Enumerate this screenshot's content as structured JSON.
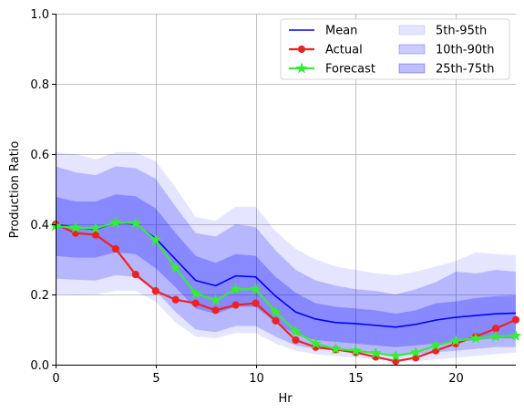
{
  "chart_data": {
    "type": "line",
    "xlabel": "Hr",
    "ylabel": "Production Ratio",
    "xlim": [
      0,
      23
    ],
    "ylim": [
      0,
      1.0
    ],
    "xticks": [
      0,
      5,
      10,
      15,
      20
    ],
    "yticks": [
      0.0,
      0.2,
      0.4,
      0.6,
      0.8,
      1.0
    ],
    "xtick_labels": [
      "0",
      "5",
      "10",
      "15",
      "20"
    ],
    "ytick_labels": [
      "0.0",
      "0.2",
      "0.4",
      "0.6",
      "0.8",
      "1.0"
    ],
    "grid": true,
    "legend_position": "top-right",
    "x": [
      0,
      1,
      2,
      3,
      4,
      5,
      6,
      7,
      8,
      9,
      10,
      11,
      12,
      13,
      14,
      15,
      16,
      17,
      18,
      19,
      20,
      21,
      22,
      23
    ],
    "series": [
      {
        "name": "Mean",
        "color": "#0000ff",
        "marker": "none",
        "values": [
          0.4,
          0.39,
          0.385,
          0.405,
          0.4,
          0.36,
          0.3,
          0.24,
          0.225,
          0.253,
          0.25,
          0.195,
          0.15,
          0.13,
          0.12,
          0.117,
          0.112,
          0.107,
          0.115,
          0.127,
          0.135,
          0.14,
          0.145,
          0.147
        ]
      },
      {
        "name": "Actual",
        "color": "#ee2222",
        "marker": "circle",
        "values": [
          0.4,
          0.375,
          0.37,
          0.33,
          0.257,
          0.21,
          0.185,
          0.175,
          0.155,
          0.17,
          0.175,
          0.125,
          0.07,
          0.05,
          0.043,
          0.035,
          0.022,
          0.01,
          0.02,
          0.04,
          0.06,
          0.08,
          0.103,
          0.128
        ]
      },
      {
        "name": "Forecast",
        "color": "#33ee33",
        "marker": "star",
        "values": [
          0.395,
          0.39,
          0.388,
          0.405,
          0.403,
          0.355,
          0.275,
          0.203,
          0.183,
          0.215,
          0.215,
          0.15,
          0.095,
          0.06,
          0.045,
          0.04,
          0.033,
          0.025,
          0.035,
          0.055,
          0.068,
          0.075,
          0.08,
          0.082
        ]
      }
    ],
    "bands": [
      {
        "name": "5th-95th",
        "color": "#0000ff",
        "opacity": 0.1,
        "lower": [
          0.2,
          0.198,
          0.2,
          0.21,
          0.21,
          0.18,
          0.12,
          0.08,
          0.075,
          0.09,
          0.09,
          0.06,
          0.04,
          0.03,
          0.025,
          0.02,
          0.015,
          0.01,
          0.01,
          0.015,
          0.02,
          0.025,
          0.03,
          0.035
        ],
        "upper": [
          0.605,
          0.6,
          0.585,
          0.605,
          0.605,
          0.58,
          0.505,
          0.42,
          0.41,
          0.45,
          0.45,
          0.38,
          0.33,
          0.3,
          0.28,
          0.27,
          0.26,
          0.255,
          0.265,
          0.28,
          0.295,
          0.32,
          0.315,
          0.312
        ]
      },
      {
        "name": "10th-90th",
        "color": "#0000ff",
        "opacity": 0.2,
        "lower": [
          0.245,
          0.242,
          0.24,
          0.255,
          0.25,
          0.21,
          0.15,
          0.1,
          0.093,
          0.11,
          0.11,
          0.08,
          0.055,
          0.045,
          0.04,
          0.035,
          0.03,
          0.025,
          0.03,
          0.035,
          0.04,
          0.045,
          0.05,
          0.05
        ],
        "upper": [
          0.565,
          0.548,
          0.54,
          0.565,
          0.56,
          0.53,
          0.45,
          0.375,
          0.365,
          0.4,
          0.392,
          0.325,
          0.27,
          0.24,
          0.225,
          0.215,
          0.21,
          0.2,
          0.215,
          0.235,
          0.265,
          0.26,
          0.27,
          0.265
        ]
      },
      {
        "name": "25th-75th",
        "color": "#0000ff",
        "opacity": 0.25,
        "lower": [
          0.31,
          0.305,
          0.305,
          0.32,
          0.315,
          0.275,
          0.22,
          0.16,
          0.145,
          0.165,
          0.165,
          0.12,
          0.085,
          0.07,
          0.065,
          0.06,
          0.055,
          0.05,
          0.055,
          0.06,
          0.065,
          0.07,
          0.075,
          0.075
        ],
        "upper": [
          0.478,
          0.465,
          0.465,
          0.485,
          0.48,
          0.445,
          0.375,
          0.31,
          0.29,
          0.315,
          0.31,
          0.25,
          0.205,
          0.175,
          0.165,
          0.16,
          0.155,
          0.145,
          0.155,
          0.175,
          0.18,
          0.19,
          0.195,
          0.197
        ]
      }
    ],
    "legend": [
      {
        "label": "Mean",
        "kind": "line",
        "color": "#0000ff",
        "marker": "none"
      },
      {
        "label": "Actual",
        "kind": "line",
        "color": "#ee2222",
        "marker": "circle"
      },
      {
        "label": "Forecast",
        "kind": "line",
        "color": "#33ee33",
        "marker": "star"
      },
      {
        "label": "5th-95th",
        "kind": "patch",
        "color": "#0000ff",
        "opacity": 0.1
      },
      {
        "label": "10th-90th",
        "kind": "patch",
        "color": "#0000ff",
        "opacity": 0.2
      },
      {
        "label": "25th-75th",
        "kind": "patch",
        "color": "#0000ff",
        "opacity": 0.25
      }
    ]
  }
}
